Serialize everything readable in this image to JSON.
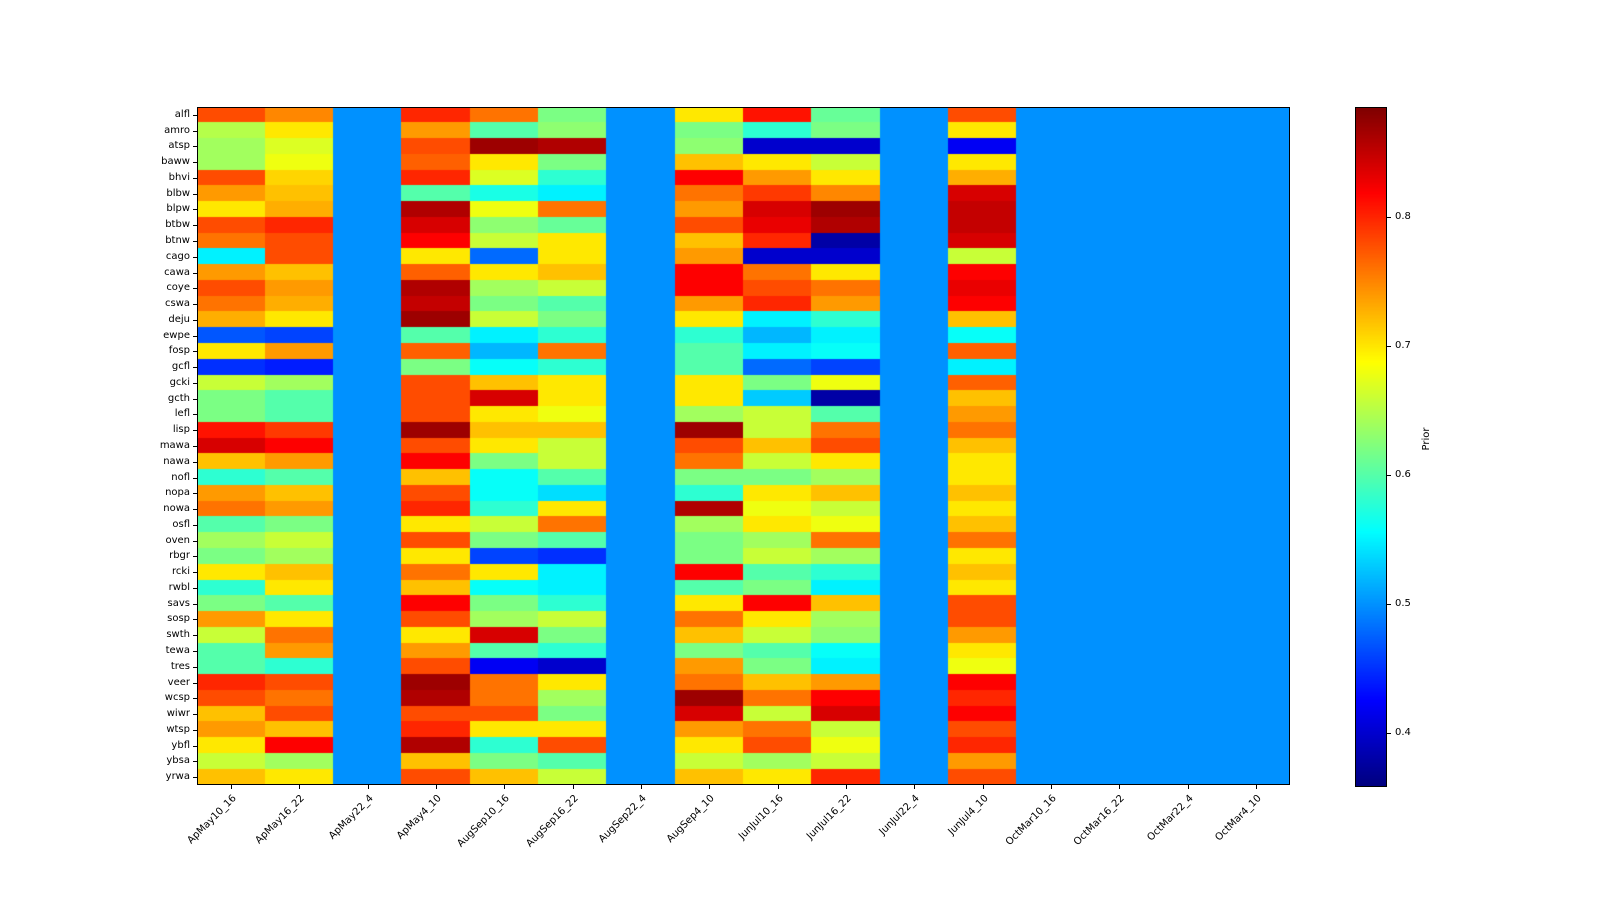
{
  "figure": {
    "background": "#ffffff",
    "axis_color": "#000000"
  },
  "chart_data": {
    "type": "heatmap",
    "title": "",
    "xlabel": "",
    "ylabel": "",
    "colormap": "jet",
    "grid": false,
    "x_categories": [
      "ApMay10_16",
      "ApMay16_22",
      "ApMay22_4",
      "ApMay4_10",
      "AugSep10_16",
      "AugSep16_22",
      "AugSep22_4",
      "AugSep4_10",
      "JunJul10_16",
      "JunJul16_22",
      "JunJul22_4",
      "JunJul4_10",
      "OctMar10_16",
      "OctMar16_22",
      "OctMar22_4",
      "OctMar4_10"
    ],
    "y_categories": [
      "alfl",
      "amro",
      "atsp",
      "baww",
      "bhvi",
      "blbw",
      "blpw",
      "btbw",
      "btnw",
      "cago",
      "cawa",
      "coye",
      "cswa",
      "deju",
      "ewpe",
      "fosp",
      "gcfl",
      "gcki",
      "gcth",
      "lefl",
      "lisp",
      "mawa",
      "nawa",
      "nofl",
      "nopa",
      "nowa",
      "osfl",
      "oven",
      "rbgr",
      "rcki",
      "rwbl",
      "savs",
      "sosp",
      "swth",
      "tewa",
      "tres",
      "veer",
      "wcsp",
      "wiwr",
      "wtsp",
      "ybfl",
      "ybsa",
      "yrwa"
    ],
    "default_value": 0.5,
    "values": [
      [
        0.78,
        0.75,
        0.5,
        0.8,
        0.76,
        0.62,
        0.5,
        0.7,
        0.81,
        0.61,
        0.5,
        0.78,
        0.5,
        0.5,
        0.5,
        0.5
      ],
      [
        0.65,
        0.7,
        0.5,
        0.74,
        0.6,
        0.63,
        0.5,
        0.62,
        0.58,
        0.62,
        0.5,
        0.7,
        0.5,
        0.5,
        0.5,
        0.5
      ],
      [
        0.64,
        0.67,
        0.5,
        0.78,
        0.87,
        0.86,
        0.5,
        0.63,
        0.4,
        0.4,
        0.5,
        0.42,
        0.5,
        0.5,
        0.5,
        0.5
      ],
      [
        0.64,
        0.68,
        0.5,
        0.77,
        0.7,
        0.62,
        0.5,
        0.72,
        0.7,
        0.66,
        0.5,
        0.7,
        0.5,
        0.5,
        0.5,
        0.5
      ],
      [
        0.78,
        0.71,
        0.5,
        0.8,
        0.67,
        0.58,
        0.5,
        0.82,
        0.74,
        0.7,
        0.5,
        0.73,
        0.5,
        0.5,
        0.5,
        0.5
      ],
      [
        0.74,
        0.72,
        0.5,
        0.6,
        0.57,
        0.55,
        0.5,
        0.76,
        0.79,
        0.75,
        0.5,
        0.84,
        0.5,
        0.5,
        0.5,
        0.5
      ],
      [
        0.7,
        0.73,
        0.5,
        0.86,
        0.68,
        0.76,
        0.5,
        0.74,
        0.84,
        0.87,
        0.5,
        0.85,
        0.5,
        0.5,
        0.5,
        0.5
      ],
      [
        0.78,
        0.8,
        0.5,
        0.84,
        0.63,
        0.61,
        0.5,
        0.78,
        0.83,
        0.86,
        0.5,
        0.85,
        0.5,
        0.5,
        0.5,
        0.5
      ],
      [
        0.76,
        0.78,
        0.5,
        0.82,
        0.66,
        0.7,
        0.5,
        0.72,
        0.8,
        0.38,
        0.5,
        0.84,
        0.5,
        0.5,
        0.5,
        0.5
      ],
      [
        0.55,
        0.78,
        0.5,
        0.7,
        0.48,
        0.7,
        0.5,
        0.74,
        0.4,
        0.4,
        0.5,
        0.66,
        0.5,
        0.5,
        0.5,
        0.5
      ],
      [
        0.74,
        0.72,
        0.5,
        0.77,
        0.7,
        0.72,
        0.5,
        0.82,
        0.76,
        0.7,
        0.5,
        0.82,
        0.5,
        0.5,
        0.5,
        0.5
      ],
      [
        0.78,
        0.74,
        0.5,
        0.86,
        0.64,
        0.66,
        0.5,
        0.82,
        0.78,
        0.76,
        0.5,
        0.83,
        0.5,
        0.5,
        0.5,
        0.5
      ],
      [
        0.76,
        0.73,
        0.5,
        0.85,
        0.62,
        0.6,
        0.5,
        0.74,
        0.8,
        0.74,
        0.5,
        0.82,
        0.5,
        0.5,
        0.5,
        0.5
      ],
      [
        0.73,
        0.7,
        0.5,
        0.87,
        0.66,
        0.62,
        0.5,
        0.7,
        0.55,
        0.58,
        0.5,
        0.72,
        0.5,
        0.5,
        0.5,
        0.5
      ],
      [
        0.47,
        0.46,
        0.5,
        0.6,
        0.55,
        0.58,
        0.5,
        0.58,
        0.52,
        0.55,
        0.5,
        0.56,
        0.5,
        0.5,
        0.5,
        0.5
      ],
      [
        0.7,
        0.74,
        0.5,
        0.77,
        0.52,
        0.76,
        0.5,
        0.6,
        0.55,
        0.56,
        0.5,
        0.77,
        0.5,
        0.5,
        0.5,
        0.5
      ],
      [
        0.45,
        0.44,
        0.5,
        0.62,
        0.56,
        0.58,
        0.5,
        0.6,
        0.48,
        0.46,
        0.5,
        0.55,
        0.5,
        0.5,
        0.5,
        0.5
      ],
      [
        0.66,
        0.64,
        0.5,
        0.78,
        0.72,
        0.7,
        0.5,
        0.7,
        0.62,
        0.68,
        0.5,
        0.77,
        0.5,
        0.5,
        0.5,
        0.5
      ],
      [
        0.62,
        0.6,
        0.5,
        0.78,
        0.84,
        0.7,
        0.5,
        0.7,
        0.53,
        0.38,
        0.5,
        0.72,
        0.5,
        0.5,
        0.5,
        0.5
      ],
      [
        0.62,
        0.6,
        0.5,
        0.78,
        0.7,
        0.68,
        0.5,
        0.64,
        0.66,
        0.6,
        0.5,
        0.74,
        0.5,
        0.5,
        0.5,
        0.5
      ],
      [
        0.81,
        0.79,
        0.5,
        0.87,
        0.72,
        0.72,
        0.5,
        0.87,
        0.66,
        0.76,
        0.5,
        0.76,
        0.5,
        0.5,
        0.5,
        0.5
      ],
      [
        0.84,
        0.82,
        0.5,
        0.78,
        0.7,
        0.66,
        0.5,
        0.78,
        0.72,
        0.78,
        0.5,
        0.72,
        0.5,
        0.5,
        0.5,
        0.5
      ],
      [
        0.72,
        0.74,
        0.5,
        0.82,
        0.62,
        0.66,
        0.5,
        0.76,
        0.66,
        0.7,
        0.5,
        0.7,
        0.5,
        0.5,
        0.5,
        0.5
      ],
      [
        0.58,
        0.6,
        0.5,
        0.72,
        0.56,
        0.6,
        0.5,
        0.62,
        0.62,
        0.64,
        0.5,
        0.7,
        0.5,
        0.5,
        0.5,
        0.5
      ],
      [
        0.74,
        0.72,
        0.5,
        0.78,
        0.56,
        0.54,
        0.5,
        0.58,
        0.7,
        0.72,
        0.5,
        0.72,
        0.5,
        0.5,
        0.5,
        0.5
      ],
      [
        0.76,
        0.74,
        0.5,
        0.8,
        0.58,
        0.7,
        0.5,
        0.86,
        0.68,
        0.66,
        0.5,
        0.7,
        0.5,
        0.5,
        0.5,
        0.5
      ],
      [
        0.6,
        0.62,
        0.5,
        0.7,
        0.66,
        0.76,
        0.5,
        0.64,
        0.7,
        0.68,
        0.5,
        0.72,
        0.5,
        0.5,
        0.5,
        0.5
      ],
      [
        0.64,
        0.66,
        0.5,
        0.78,
        0.62,
        0.6,
        0.5,
        0.62,
        0.64,
        0.76,
        0.5,
        0.76,
        0.5,
        0.5,
        0.5,
        0.5
      ],
      [
        0.62,
        0.64,
        0.5,
        0.7,
        0.46,
        0.45,
        0.5,
        0.62,
        0.66,
        0.64,
        0.5,
        0.7,
        0.5,
        0.5,
        0.5,
        0.5
      ],
      [
        0.7,
        0.72,
        0.5,
        0.76,
        0.7,
        0.55,
        0.5,
        0.82,
        0.6,
        0.58,
        0.5,
        0.72,
        0.5,
        0.5,
        0.5,
        0.5
      ],
      [
        0.58,
        0.7,
        0.5,
        0.72,
        0.56,
        0.55,
        0.5,
        0.6,
        0.62,
        0.55,
        0.5,
        0.7,
        0.5,
        0.5,
        0.5,
        0.5
      ],
      [
        0.62,
        0.6,
        0.5,
        0.82,
        0.62,
        0.58,
        0.5,
        0.7,
        0.82,
        0.72,
        0.5,
        0.78,
        0.5,
        0.5,
        0.5,
        0.5
      ],
      [
        0.74,
        0.7,
        0.5,
        0.78,
        0.64,
        0.66,
        0.5,
        0.76,
        0.7,
        0.64,
        0.5,
        0.78,
        0.5,
        0.5,
        0.5,
        0.5
      ],
      [
        0.66,
        0.76,
        0.5,
        0.7,
        0.84,
        0.62,
        0.5,
        0.72,
        0.66,
        0.63,
        0.5,
        0.74,
        0.5,
        0.5,
        0.5,
        0.5
      ],
      [
        0.6,
        0.74,
        0.5,
        0.74,
        0.6,
        0.58,
        0.5,
        0.62,
        0.6,
        0.56,
        0.5,
        0.7,
        0.5,
        0.5,
        0.5,
        0.5
      ],
      [
        0.6,
        0.58,
        0.5,
        0.78,
        0.42,
        0.4,
        0.5,
        0.74,
        0.62,
        0.55,
        0.5,
        0.68,
        0.5,
        0.5,
        0.5,
        0.5
      ],
      [
        0.8,
        0.78,
        0.5,
        0.87,
        0.76,
        0.7,
        0.5,
        0.76,
        0.72,
        0.74,
        0.5,
        0.82,
        0.5,
        0.5,
        0.5,
        0.5
      ],
      [
        0.78,
        0.76,
        0.5,
        0.86,
        0.76,
        0.64,
        0.5,
        0.87,
        0.76,
        0.82,
        0.5,
        0.8,
        0.5,
        0.5,
        0.5,
        0.5
      ],
      [
        0.72,
        0.78,
        0.5,
        0.78,
        0.78,
        0.62,
        0.5,
        0.84,
        0.66,
        0.84,
        0.5,
        0.82,
        0.5,
        0.5,
        0.5,
        0.5
      ],
      [
        0.74,
        0.72,
        0.5,
        0.8,
        0.7,
        0.7,
        0.5,
        0.74,
        0.76,
        0.66,
        0.5,
        0.78,
        0.5,
        0.5,
        0.5,
        0.5
      ],
      [
        0.7,
        0.82,
        0.5,
        0.86,
        0.58,
        0.78,
        0.5,
        0.7,
        0.78,
        0.68,
        0.5,
        0.8,
        0.5,
        0.5,
        0.5,
        0.5
      ],
      [
        0.66,
        0.64,
        0.5,
        0.72,
        0.62,
        0.6,
        0.5,
        0.66,
        0.64,
        0.66,
        0.5,
        0.74,
        0.5,
        0.5,
        0.5,
        0.5
      ],
      [
        0.72,
        0.7,
        0.5,
        0.78,
        0.72,
        0.66,
        0.5,
        0.72,
        0.7,
        0.8,
        0.5,
        0.78,
        0.5,
        0.5,
        0.5,
        0.5
      ]
    ],
    "colorbar": {
      "label": "Prior",
      "ticks": [
        0.4,
        0.5,
        0.6,
        0.7,
        0.8
      ],
      "tick_labels": [
        "0.4",
        "0.5",
        "0.6",
        "0.7",
        "0.8"
      ],
      "vmin": 0.36,
      "vmax": 0.885,
      "position": "right"
    }
  }
}
